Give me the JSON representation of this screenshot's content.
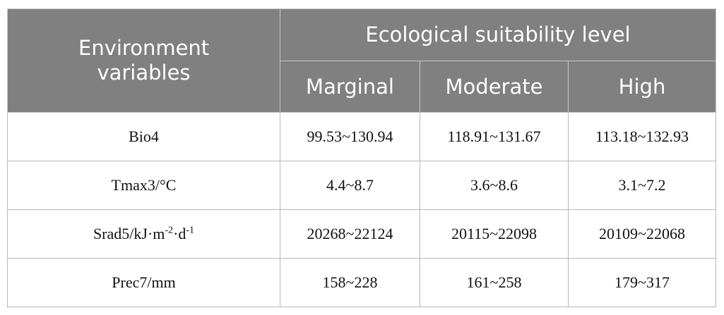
{
  "header": {
    "first": "Environment variables",
    "group": "Ecological suitability level",
    "levels": [
      "Marginal",
      "Moderate",
      "High"
    ]
  },
  "rows": [
    {
      "label": [
        "Bio4"
      ],
      "values": [
        "99.53~130.94",
        "118.91~131.67",
        "113.18~132.93"
      ]
    },
    {
      "label": [
        "Tmax3/°C"
      ],
      "values": [
        "4.4~8.7",
        "3.6~8.6",
        "3.1~7.2"
      ]
    },
    {
      "label": [
        "Srad5/kJ·m",
        "-2",
        "·d",
        "-1"
      ],
      "values": [
        "20268~22124",
        "20115~22098",
        "20109~22068"
      ]
    },
    {
      "label": [
        "Prec7/mm"
      ],
      "values": [
        "158~228",
        "161~258",
        "179~317"
      ]
    }
  ]
}
